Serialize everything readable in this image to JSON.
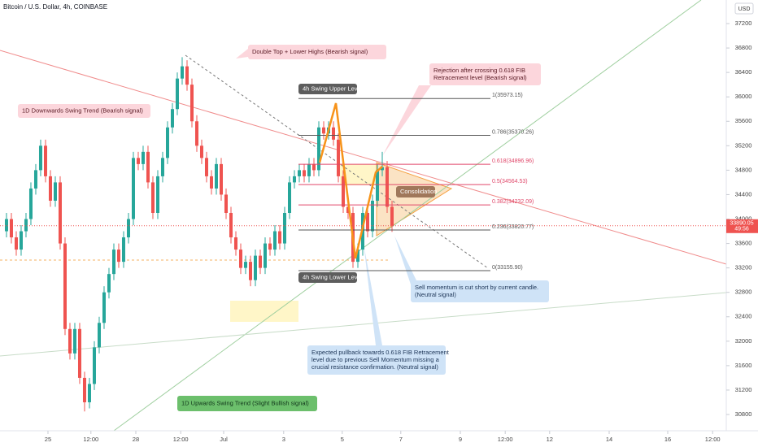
{
  "chart_data": {
    "type": "candlestick",
    "title": "Bitcoin / U.S. Dollar, 4h, COINBASE",
    "currency": "USD",
    "up_color": "#26a69a",
    "down_color": "#ef5350",
    "open": [
      33800,
      34000,
      33700,
      33500,
      33800,
      34000,
      34500,
      34800,
      35200,
      34700,
      34300,
      34600,
      33600,
      32200,
      31800,
      32200,
      31400,
      31000,
      31300,
      31900,
      32300,
      32800,
      33100,
      33500,
      33300,
      33700,
      34000,
      35000,
      34900,
      35100,
      34600,
      34100,
      34700,
      35000,
      35500,
      35800,
      36300,
      36500,
      36200,
      35600,
      35200,
      35000,
      34700,
      34500,
      34900,
      34400,
      34100,
      33700,
      33500,
      33200,
      33300,
      33000,
      33400,
      33200,
      33600,
      33500,
      33800,
      33600,
      34100,
      34600,
      34700,
      34800,
      34700,
      34900,
      34800,
      35500,
      35400,
      35500,
      35300,
      34700,
      34200,
      34100,
      33300,
      33500,
      34100,
      33800,
      34300,
      34800,
      34850,
      34200
    ],
    "high": [
      34100,
      34100,
      33800,
      33900,
      34100,
      34600,
      34900,
      35300,
      35300,
      34800,
      34700,
      34700,
      33700,
      32300,
      32300,
      32300,
      31500,
      31400,
      32000,
      32400,
      32900,
      33200,
      33600,
      33600,
      33800,
      34100,
      35100,
      35100,
      35200,
      35200,
      34700,
      34800,
      35100,
      35600,
      35900,
      36400,
      36650,
      36600,
      36300,
      35700,
      35300,
      35100,
      34800,
      35000,
      35000,
      34500,
      34200,
      33800,
      33600,
      33400,
      33400,
      33500,
      33500,
      33700,
      33700,
      33900,
      33900,
      34200,
      34700,
      34800,
      34900,
      34900,
      35000,
      35000,
      35600,
      35600,
      35600,
      35600,
      35400,
      34800,
      34300,
      34200,
      33600,
      34200,
      34200,
      34400,
      34900,
      35100,
      34950,
      34300
    ],
    "low": [
      33700,
      33600,
      33400,
      33400,
      33700,
      33900,
      34400,
      34700,
      34600,
      34200,
      34200,
      33500,
      32100,
      31700,
      31700,
      31300,
      30850,
      30900,
      31200,
      31800,
      32200,
      32700,
      33000,
      33200,
      33200,
      33600,
      33900,
      34800,
      34800,
      34500,
      34000,
      34000,
      34600,
      34900,
      35400,
      35700,
      36200,
      36100,
      35500,
      35100,
      34900,
      34600,
      34400,
      34400,
      34300,
      34000,
      33600,
      33400,
      33100,
      33100,
      32900,
      32900,
      33100,
      33100,
      33400,
      33400,
      33500,
      33500,
      34000,
      34500,
      34600,
      34600,
      34600,
      34700,
      34700,
      35300,
      35300,
      35200,
      34600,
      34100,
      34000,
      33200,
      33200,
      33400,
      33700,
      33700,
      34200,
      34700,
      34100,
      33790
    ],
    "close": [
      34000,
      33700,
      33500,
      33800,
      34000,
      34500,
      34800,
      35200,
      34700,
      34300,
      34600,
      33600,
      32200,
      31800,
      32200,
      31400,
      31000,
      31300,
      31900,
      32300,
      32800,
      33100,
      33500,
      33300,
      33700,
      34000,
      35000,
      34900,
      35100,
      34600,
      34100,
      34700,
      35000,
      35500,
      35800,
      36300,
      36500,
      36200,
      35600,
      35200,
      35000,
      34700,
      34500,
      34900,
      34400,
      34100,
      33700,
      33500,
      33200,
      33300,
      33000,
      33400,
      33200,
      33600,
      33500,
      33800,
      33600,
      34100,
      34600,
      34700,
      34800,
      34700,
      34900,
      34800,
      35500,
      35400,
      35500,
      35300,
      34700,
      34200,
      34100,
      33300,
      33500,
      34100,
      33800,
      34300,
      34800,
      34850,
      34200,
      33890
    ],
    "xlim": [
      -1.33,
      147.5
    ],
    "xticks": [
      {
        "value": 8.5,
        "label": "25"
      },
      {
        "value": 17.3,
        "label": "12:00"
      },
      {
        "value": 26.5,
        "label": "28"
      },
      {
        "value": 35.7,
        "label": "12:00"
      },
      {
        "value": 44.5,
        "label": "Jul"
      },
      {
        "value": 56.8,
        "label": "3"
      },
      {
        "value": 68.8,
        "label": "5"
      },
      {
        "value": 80.8,
        "label": "7"
      },
      {
        "value": 93,
        "label": "9"
      },
      {
        "value": 102.2,
        "label": "12:00"
      },
      {
        "value": 111.3,
        "label": "12"
      },
      {
        "value": 123.5,
        "label": "14"
      },
      {
        "value": 135.5,
        "label": "16"
      },
      {
        "value": 144.7,
        "label": "12:00"
      }
    ],
    "ylim": [
      30534,
      37586
    ],
    "yticks": [
      30800,
      31200,
      31600,
      32000,
      32400,
      32800,
      33200,
      33600,
      34000,
      34400,
      34800,
      35200,
      35600,
      36000,
      36400,
      36800,
      37200
    ],
    "last_price": 33890.05,
    "countdown": "49:56",
    "fib_levels": [
      {
        "value": 35973.15,
        "label": "1(35973.15)",
        "color": "#555555"
      },
      {
        "value": 35370.26,
        "label": "0.786(35370.26)",
        "color": "#555555"
      },
      {
        "value": 34896.96,
        "label": "0.618(34896.96)",
        "color": "#e0486a"
      },
      {
        "value": 34564.53,
        "label": "0.5(34564.53)",
        "color": "#e0486a"
      },
      {
        "value": 34232.09,
        "label": "0.382(34232.09)",
        "color": "#e0486a"
      },
      {
        "value": 33820.77,
        "label": "0.236(33820.77)",
        "color": "#555555"
      },
      {
        "value": 33155.9,
        "label": "0(33155.90)",
        "color": "#555555"
      }
    ],
    "annotations": [
      {
        "lines": [
          "Double Top + Lower Highs (Bearish signal)"
        ]
      },
      {
        "lines": [
          "1D Downwards Swing Trend (Bearish signal)"
        ]
      },
      {
        "lines": [
          "Rejection after crossing 0.618 FIB",
          "Retracement level (Bearish signal)"
        ]
      },
      {
        "lines": [
          "4h Swing Upper Level"
        ]
      },
      {
        "lines": [
          "4h Swing Lower Level"
        ]
      },
      {
        "lines": [
          "Consolidation"
        ]
      },
      {
        "lines": [
          "Sell momentum is cut short by current candle.",
          "(Neutral signal)"
        ]
      },
      {
        "lines": [
          "Expected pullback towards 0.618 FIB Retracement",
          "level due to previous Sell Momentum missing a",
          "crucial resistance confirmation. (Neutral signal)"
        ]
      },
      {
        "lines": [
          "1D Upwards Swing Trend (Slight Bullish signal)"
        ]
      }
    ]
  }
}
